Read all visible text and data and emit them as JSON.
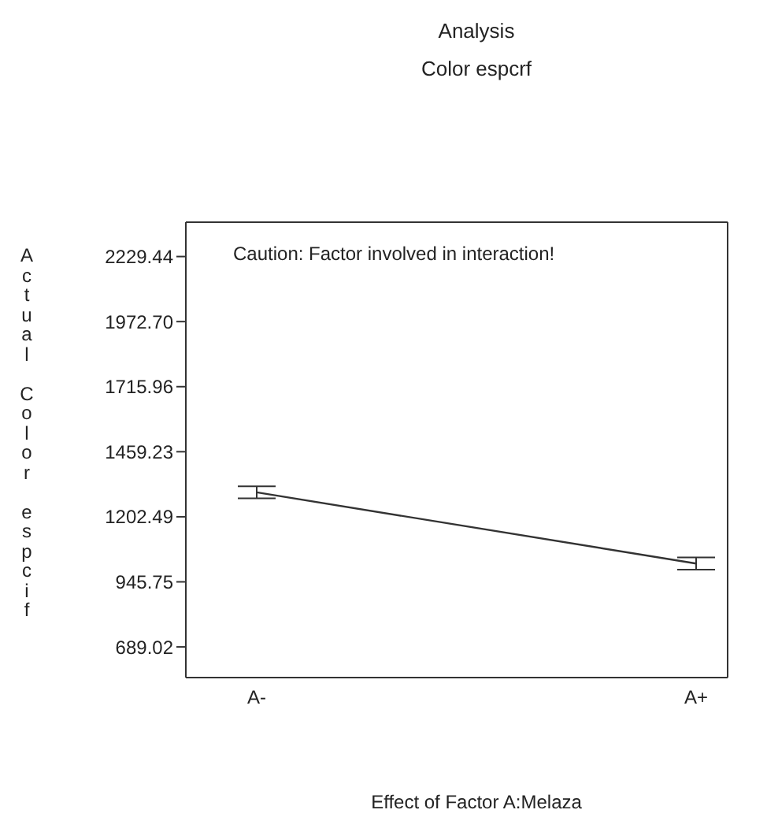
{
  "chart_data": {
    "type": "line",
    "title": "Analysis",
    "subtitle": "Color espcrf",
    "xlabel": "Effect of Factor A:Melaza",
    "ylabel": "Actual Color espcif",
    "annotations": [
      "Caution: Factor involved in interaction!"
    ],
    "categories": [
      "A-",
      "A+"
    ],
    "series": [
      {
        "color": "#333333",
        "values": [
          1299,
          1018
        ],
        "errors": [
          24,
          24
        ]
      }
    ],
    "ylim": [
      568,
      2365
    ],
    "yticks": [
      {
        "value": 689.02,
        "label": "689.02"
      },
      {
        "value": 945.75,
        "label": "945.75"
      },
      {
        "value": 1202.49,
        "label": "1202.49"
      },
      {
        "value": 1459.23,
        "label": "1459.23"
      },
      {
        "value": 1715.96,
        "label": "1715.96"
      },
      {
        "value": 1972.7,
        "label": "1972.70"
      },
      {
        "value": 2229.44,
        "label": "2229.44"
      }
    ],
    "grid": false,
    "marker": "none",
    "line_style": "solid"
  }
}
